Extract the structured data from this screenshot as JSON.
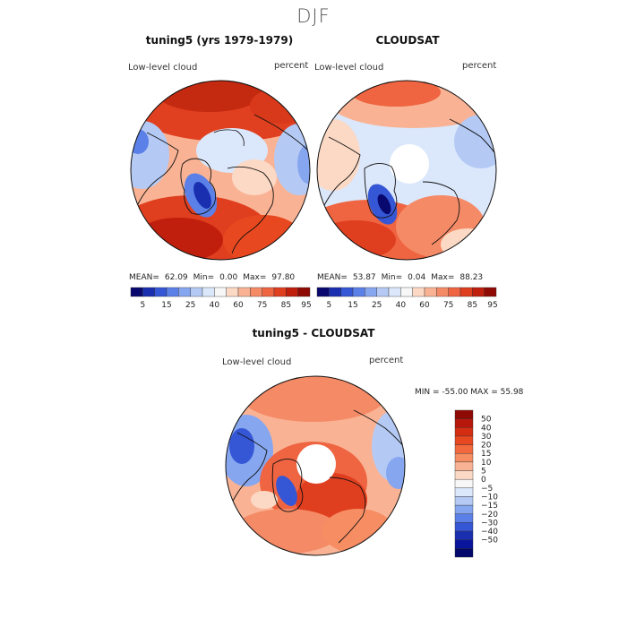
{
  "season": "DJF",
  "panels": [
    {
      "id": "model",
      "title": "tuning5 (yrs 1979-1979)",
      "left_label": "Low-level cloud",
      "right_label": "percent",
      "stats": {
        "mean_label": "MEAN=",
        "mean": "62.09",
        "min_label": "Min=",
        "min": "0.00",
        "max_label": "Max=",
        "max": "97.80"
      }
    },
    {
      "id": "obs",
      "title": "CLOUDSAT",
      "left_label": "Low-level cloud",
      "right_label": "percent",
      "stats": {
        "mean_label": "MEAN=",
        "mean": "53.87",
        "min_label": "Min=",
        "min": "0.04",
        "max_label": "Max=",
        "max": "88.23"
      }
    },
    {
      "id": "diff",
      "title": "tuning5 - CLOUDSAT",
      "left_label": "Low-level cloud",
      "right_label": "percent",
      "stats_line": "MIN = -55.00 MAX =  55.98"
    }
  ],
  "colorbar_top": {
    "colors": [
      "#08086e",
      "#1a2fb0",
      "#3557d6",
      "#5b80e8",
      "#86a6ef",
      "#b4caf5",
      "#dbe7fa",
      "#f7f7f7",
      "#fcd9c5",
      "#f9b394",
      "#f58a66",
      "#ef6441",
      "#df3e1f",
      "#bf1f0c",
      "#8f0a04"
    ],
    "tick_labels": [
      "5",
      "15",
      "25",
      "40",
      "60",
      "75",
      "85",
      "95"
    ]
  },
  "colorbar_diff": {
    "colors": [
      "#8f0a04",
      "#b8180b",
      "#d52d12",
      "#e8481f",
      "#f2693d",
      "#f68d63",
      "#f9b394",
      "#fcd9c5",
      "#f7f7f7",
      "#dbe7fa",
      "#b4caf5",
      "#86a6ef",
      "#5b80e8",
      "#3557d6",
      "#1a2fb0",
      "#0a159e",
      "#03086a"
    ],
    "tick_labels": [
      "50",
      "40",
      "30",
      "20",
      "15",
      "10",
      "5",
      "0",
      "−5",
      "−10",
      "−15",
      "−20",
      "−30",
      "−40",
      "−50"
    ]
  }
}
